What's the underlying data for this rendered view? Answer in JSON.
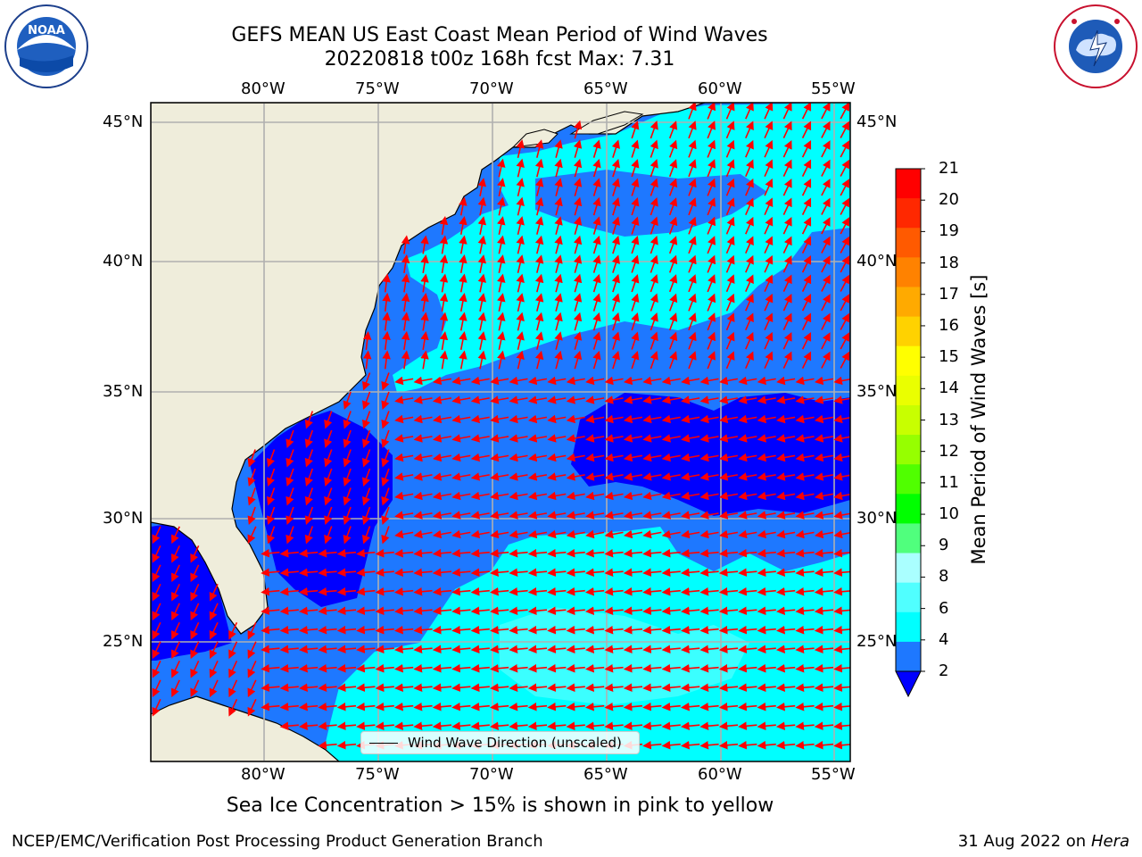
{
  "title": {
    "line1": "GEFS MEAN US East Coast Mean Period of Wind Waves",
    "line2": "20220818 t00z 168h fcst   Max: 7.31"
  },
  "logos": {
    "noaa": {
      "text": "NOAA",
      "ring_text": "NATIONAL OCEANIC AND ATMOSPHERIC ADMINISTRATION · U.S. DEPARTMENT OF COMMERCE"
    },
    "nws": {
      "ring_text": "NATIONAL WEATHER SERVICE"
    }
  },
  "map": {
    "lon_ticks": [
      "80°W",
      "75°W",
      "70°W",
      "65°W",
      "60°W",
      "55°W"
    ],
    "lat_ticks": [
      "45°N",
      "40°N",
      "35°N",
      "30°N",
      "25°N"
    ],
    "legend_label": "Wind Wave Direction (unscaled)",
    "colors": {
      "land": "#efeddb",
      "ocean_low": "#1e78ff",
      "ocean_vlow": "#0000ff",
      "ocean_mid": "#00ffff",
      "ocean_mid2": "#3bffff",
      "arrow": "#ff0000",
      "grid": "#b0b0b0"
    }
  },
  "colorbar": {
    "label": "Mean Period of Wind Waves [s]",
    "ticks": [
      "21",
      "20",
      "19",
      "18",
      "17",
      "16",
      "15",
      "14",
      "13",
      "12",
      "11",
      "10",
      "9",
      "8",
      "6",
      "4",
      "2"
    ],
    "colors": [
      "#ff0000",
      "#ff2800",
      "#ff5a00",
      "#ff8200",
      "#ffaa00",
      "#ffd200",
      "#ffff00",
      "#eaff00",
      "#c8ff00",
      "#96ff00",
      "#50ff00",
      "#00ff00",
      "#50ff7d",
      "#aaffff",
      "#50ffff",
      "#00ffff",
      "#1e78ff"
    ],
    "under_color": "#0000ff"
  },
  "note": "Sea Ice Concentration > 15% is shown in pink to yellow",
  "footer": {
    "left": "NCEP/EMC/Verification Post Processing Product Generation Branch",
    "right_date": "31 Aug 2022 on",
    "right_host": "Hera"
  }
}
